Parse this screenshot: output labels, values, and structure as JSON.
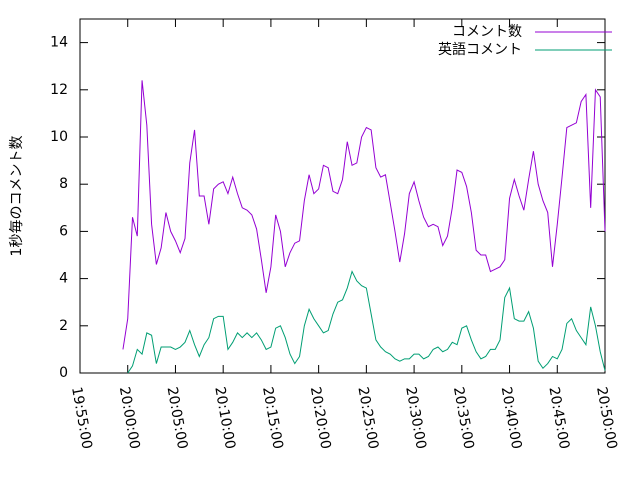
{
  "chart_data": {
    "type": "line",
    "ylabel": "1秒毎のコメント数",
    "xlim": [
      "19:55:00",
      "20:50:00"
    ],
    "xticks": [
      "19:55:00",
      "20:00:00",
      "20:05:00",
      "20:10:00",
      "20:15:00",
      "20:20:00",
      "20:25:00",
      "20:30:00",
      "20:35:00",
      "20:40:00",
      "20:45:00",
      "20:50:00"
    ],
    "ylim": [
      0,
      15
    ],
    "yticks": [
      0,
      2,
      4,
      6,
      8,
      10,
      12,
      14
    ],
    "legend": "top-right",
    "x": [
      "19:59:30",
      "20:00:00",
      "20:00:30",
      "20:01:00",
      "20:01:30",
      "20:02:00",
      "20:02:30",
      "20:03:00",
      "20:03:30",
      "20:04:00",
      "20:04:30",
      "20:05:00",
      "20:05:30",
      "20:06:00",
      "20:06:30",
      "20:07:00",
      "20:07:30",
      "20:08:00",
      "20:08:30",
      "20:09:00",
      "20:09:30",
      "20:10:00",
      "20:10:30",
      "20:11:00",
      "20:11:30",
      "20:12:00",
      "20:12:30",
      "20:13:00",
      "20:13:30",
      "20:14:00",
      "20:14:30",
      "20:15:00",
      "20:15:30",
      "20:16:00",
      "20:16:30",
      "20:17:00",
      "20:17:30",
      "20:18:00",
      "20:18:30",
      "20:19:00",
      "20:19:30",
      "20:20:00",
      "20:20:30",
      "20:21:00",
      "20:21:30",
      "20:22:00",
      "20:22:30",
      "20:23:00",
      "20:23:30",
      "20:24:00",
      "20:24:30",
      "20:25:00",
      "20:25:30",
      "20:26:00",
      "20:26:30",
      "20:27:00",
      "20:27:30",
      "20:28:00",
      "20:28:30",
      "20:29:00",
      "20:29:30",
      "20:30:00",
      "20:30:30",
      "20:31:00",
      "20:31:30",
      "20:32:00",
      "20:32:30",
      "20:33:00",
      "20:33:30",
      "20:34:00",
      "20:34:30",
      "20:35:00",
      "20:35:30",
      "20:36:00",
      "20:36:30",
      "20:37:00",
      "20:37:30",
      "20:38:00",
      "20:38:30",
      "20:39:00",
      "20:39:30",
      "20:40:00",
      "20:40:30",
      "20:41:00",
      "20:41:30",
      "20:42:00",
      "20:42:30",
      "20:43:00",
      "20:43:30",
      "20:44:00",
      "20:44:30",
      "20:45:00",
      "20:45:30",
      "20:46:00",
      "20:46:30",
      "20:47:00",
      "20:47:30",
      "20:48:00",
      "20:48:30",
      "20:49:00",
      "20:49:30",
      "20:50:00"
    ],
    "series": [
      {
        "name": "コメント数",
        "color": "#9400d3",
        "values": [
          1.0,
          2.3,
          6.6,
          5.8,
          12.4,
          10.5,
          6.3,
          4.6,
          5.3,
          6.8,
          6.0,
          5.6,
          5.1,
          5.7,
          8.9,
          10.3,
          7.5,
          7.5,
          6.3,
          7.8,
          8.0,
          8.1,
          7.6,
          8.3,
          7.6,
          7.0,
          6.9,
          6.7,
          6.1,
          4.8,
          3.4,
          4.5,
          6.7,
          6.0,
          4.5,
          5.1,
          5.5,
          5.6,
          7.3,
          8.4,
          7.6,
          7.8,
          8.8,
          8.7,
          7.7,
          7.6,
          8.2,
          9.8,
          8.8,
          8.9,
          10.0,
          10.4,
          10.3,
          8.7,
          8.3,
          8.4,
          7.2,
          6.0,
          4.7,
          5.9,
          7.6,
          8.1,
          7.3,
          6.6,
          6.2,
          6.3,
          6.2,
          5.4,
          5.8,
          7.0,
          8.6,
          8.5,
          7.9,
          6.8,
          5.2,
          5.0,
          5.0,
          4.3,
          4.4,
          4.5,
          4.8,
          7.4,
          8.2,
          7.5,
          6.9,
          8.2,
          9.4,
          8.0,
          7.3,
          6.8,
          4.5,
          6.3,
          8.3,
          10.4,
          10.5,
          10.6,
          11.5,
          11.8,
          7.0,
          12.0,
          11.7,
          6.0
        ]
      },
      {
        "name": "英語コメント",
        "color": "#009e73",
        "values": [
          null,
          0.0,
          0.3,
          1.0,
          0.8,
          1.7,
          1.6,
          0.4,
          1.1,
          1.1,
          1.1,
          1.0,
          1.1,
          1.3,
          1.8,
          1.2,
          0.7,
          1.2,
          1.5,
          2.3,
          2.4,
          2.4,
          1.0,
          1.3,
          1.7,
          1.5,
          1.7,
          1.5,
          1.7,
          1.4,
          1.0,
          1.1,
          1.9,
          2.0,
          1.5,
          0.8,
          0.4,
          0.7,
          2.0,
          2.7,
          2.3,
          2.0,
          1.7,
          1.8,
          2.5,
          3.0,
          3.1,
          3.6,
          4.3,
          3.9,
          3.7,
          3.6,
          2.5,
          1.4,
          1.1,
          0.9,
          0.8,
          0.6,
          0.5,
          0.6,
          0.6,
          0.8,
          0.8,
          0.6,
          0.7,
          1.0,
          1.1,
          0.9,
          1.0,
          1.3,
          1.2,
          1.9,
          2.0,
          1.4,
          0.9,
          0.6,
          0.7,
          1.0,
          1.0,
          1.4,
          3.2,
          3.6,
          2.3,
          2.2,
          2.2,
          2.6,
          1.9,
          0.5,
          0.2,
          0.4,
          0.7,
          0.6,
          1.0,
          2.1,
          2.3,
          1.8,
          1.5,
          1.2,
          2.8,
          2.0,
          0.9,
          0.1
        ]
      }
    ]
  }
}
